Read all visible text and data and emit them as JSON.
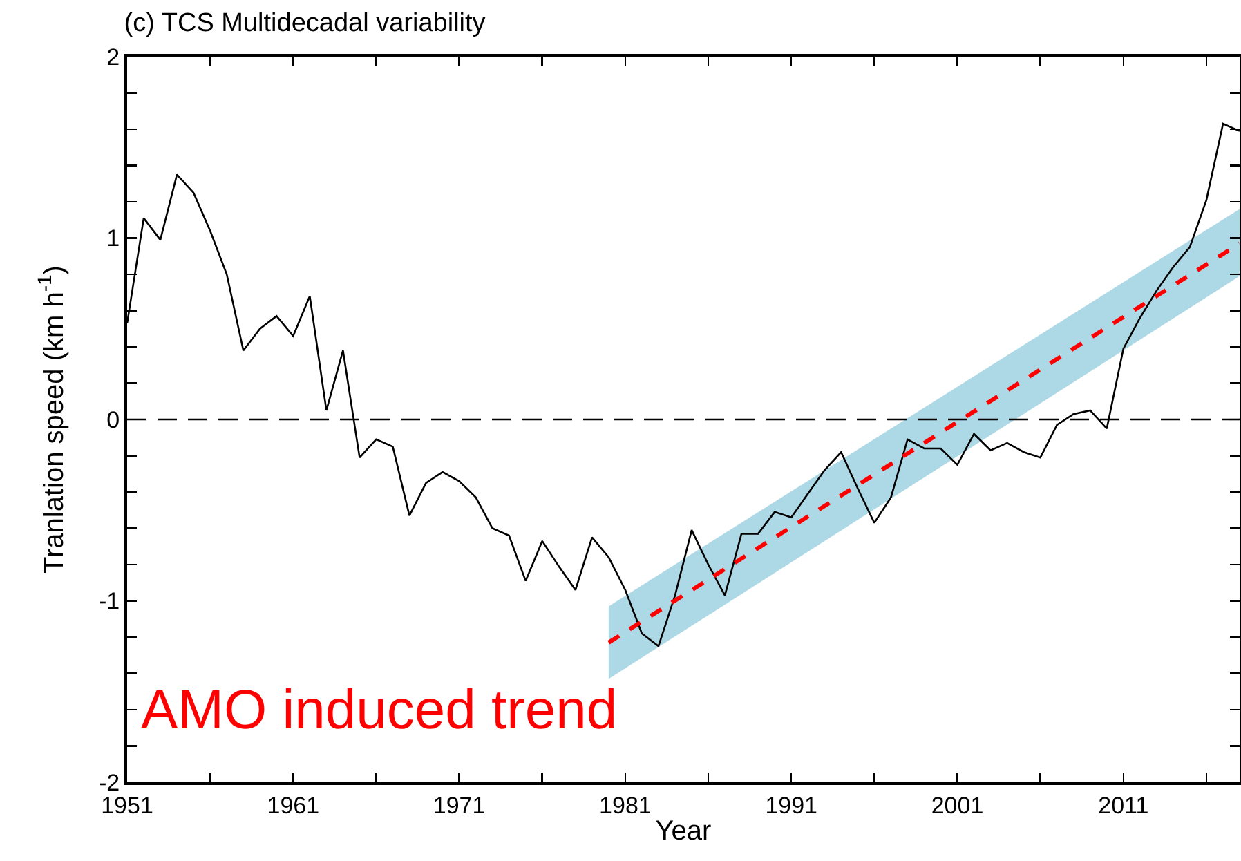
{
  "chart_data": {
    "type": "line",
    "title": "(c) TCS Multidecadal variability",
    "xlabel": "Year",
    "ylabel": "Tranlation speed (km h$^{-1}$)",
    "x": [
      1951,
      1952,
      1953,
      1954,
      1955,
      1956,
      1957,
      1958,
      1959,
      1960,
      1961,
      1962,
      1963,
      1964,
      1965,
      1966,
      1967,
      1968,
      1969,
      1970,
      1971,
      1972,
      1973,
      1974,
      1975,
      1976,
      1977,
      1978,
      1979,
      1980,
      1981,
      1982,
      1983,
      1984,
      1985,
      1986,
      1987,
      1988,
      1989,
      1990,
      1991,
      1992,
      1993,
      1994,
      1995,
      1996,
      1997,
      1998,
      1999,
      2000,
      2001,
      2002,
      2003,
      2004,
      2005,
      2006,
      2007,
      2008,
      2009,
      2010,
      2011,
      2012,
      2013,
      2014,
      2015,
      2016,
      2017,
      2018
    ],
    "series": [
      {
        "color": "#000000",
        "values": [
          0.53,
          1.11,
          0.99,
          1.35,
          1.25,
          1.04,
          0.8,
          0.38,
          0.5,
          0.57,
          0.46,
          0.68,
          0.05,
          0.38,
          -0.21,
          -0.11,
          -0.15,
          -0.53,
          -0.35,
          -0.29,
          -0.34,
          -0.43,
          -0.6,
          -0.64,
          -0.89,
          -0.67,
          -0.81,
          -0.94,
          -0.65,
          -0.76,
          -0.94,
          -1.18,
          -1.25,
          -0.97,
          -0.61,
          -0.8,
          -0.97,
          -0.63,
          -0.63,
          -0.51,
          -0.54,
          -0.41,
          -0.28,
          -0.18,
          -0.38,
          -0.57,
          -0.43,
          -0.11,
          -0.16,
          -0.16,
          -0.25,
          -0.08,
          -0.17,
          -0.13,
          -0.18,
          -0.21,
          -0.03,
          0.03,
          0.05,
          -0.05,
          0.39,
          0.56,
          0.71,
          0.84,
          0.95,
          1.21,
          1.63,
          1.59
        ]
      },
      {
        "type": "line",
        "color": "#ff0000",
        "line_style": "dashed",
        "x": [
          1980,
          2018
        ],
        "values": [
          -1.23,
          0.97
        ],
        "lower": [
          -1.43,
          0.79
        ],
        "upper": [
          -1.03,
          1.16
        ]
      }
    ],
    "xlim": [
      1951,
      2018
    ],
    "xticks": [
      1951,
      {
        "value": 1956,
        "label": null
      },
      1961,
      {
        "value": 1966,
        "label": null
      },
      1971,
      {
        "value": 1976,
        "label": null
      },
      1981,
      {
        "value": 1986,
        "label": null
      },
      1991,
      {
        "value": 1996,
        "label": null
      },
      2001,
      {
        "value": 2006,
        "label": null
      },
      2011,
      {
        "value": 2016,
        "label": null
      }
    ],
    "ylim": [
      -2,
      2
    ],
    "yticks": [
      -2,
      {
        "value": -1.8,
        "label": null
      },
      {
        "value": -1.6,
        "label": null
      },
      {
        "value": -1.4,
        "label": null
      },
      {
        "value": -1.2,
        "label": null
      },
      -1,
      {
        "value": -0.8,
        "label": null
      },
      {
        "value": -0.6,
        "label": null
      },
      {
        "value": -0.4,
        "label": null
      },
      {
        "value": -0.2,
        "label": null
      },
      0,
      {
        "value": 0.2,
        "label": null
      },
      {
        "value": 0.4,
        "label": null
      },
      {
        "value": 0.6,
        "label": null
      },
      {
        "value": 0.8,
        "label": null
      },
      1,
      {
        "value": 1.2,
        "label": null
      },
      {
        "value": 1.4,
        "label": null
      },
      {
        "value": 1.6,
        "label": null
      },
      {
        "value": 1.8,
        "label": null
      },
      2
    ],
    "ref_lines": [
      {
        "axis": "y",
        "value": 0,
        "color": "#000000",
        "line_style": "dashed"
      }
    ],
    "annotations": [
      "AMO induced trend"
    ],
    "grid": false,
    "marker": "none",
    "line_style": "solid"
  }
}
